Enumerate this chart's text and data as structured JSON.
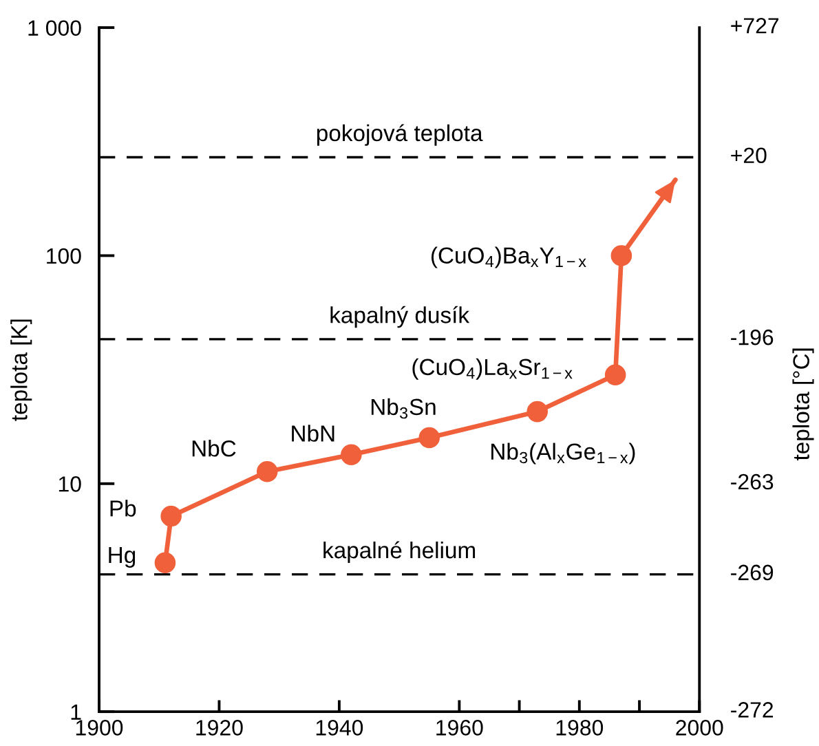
{
  "chart_data": {
    "type": "line",
    "ylabel": "teplota [K]",
    "y2label": "teplota [°C]",
    "marker": "circle",
    "line_style": "solid",
    "log": true,
    "x": [
      1911,
      1912,
      1928,
      1942,
      1955,
      1973,
      1986,
      1987
    ],
    "series": [
      {
        "color": "#f0603a",
        "values": [
          4.5,
          7.2,
          11.3,
          13.4,
          15.9,
          20.7,
          30,
          100
        ]
      },
      {
        "color": "#f0603a",
        "x": [
          1987,
          1996
        ],
        "values": [
          100,
          215
        ],
        "marker": "none"
      }
    ],
    "xlim": [
      1900,
      2000
    ],
    "xticks": [
      1900,
      1920,
      1940,
      1960,
      {
        "value": 1970,
        "label": null
      },
      1980,
      {
        "value": 1990,
        "label": null
      },
      2000
    ],
    "ylim": [
      1,
      1000
    ],
    "yticks": [
      1,
      10,
      100,
      {
        "value": 1000,
        "label": "1 000"
      }
    ],
    "ref_lines": [
      {
        "axis": "y",
        "value": 270,
        "label": "pokojová teplota",
        "color": "#000000",
        "line_style": "dashed"
      },
      {
        "axis": "y",
        "value": 43,
        "label": "kapalný dusík",
        "color": "#000000",
        "line_style": "dashed"
      },
      {
        "axis": "y",
        "value": 4,
        "label": "kapalné helium",
        "color": "#000000",
        "line_style": "dashed"
      }
    ],
    "annotations": [
      {
        "text": "Hg",
        "x": 1911,
        "y": 4.5
      },
      {
        "text": "Pb",
        "x": 1912,
        "y": 7.2
      },
      {
        "text": "NbC",
        "x": 1928,
        "y": 11.3
      },
      {
        "text": "NbN",
        "x": 1942,
        "y": 13.4
      },
      {
        "text": "Nb$_{3}$Sn",
        "x": 1955,
        "y": 15.9
      },
      {
        "text": "Nb$_{3}$(Al$_{x}$Ge$_{1−x}$)",
        "x": 1973,
        "y": 20.7
      },
      {
        "text": "(CuO$_{4}$)La$_{x}$Sr$_{1−x}$",
        "x": 1986,
        "y": 30
      },
      {
        "text": "(CuO$_{4}$)Ba$_{x}$Y$_{1−x}$",
        "x": 1987,
        "y": 100
      },
      "+727",
      {
        "text": "+20",
        "x": 2000,
        "y": 270
      },
      {
        "text": "-196",
        "x": 2000,
        "y": 43
      },
      "-263",
      {
        "text": "-269",
        "x": 2000,
        "y": 4
      },
      "-272"
    ]
  }
}
